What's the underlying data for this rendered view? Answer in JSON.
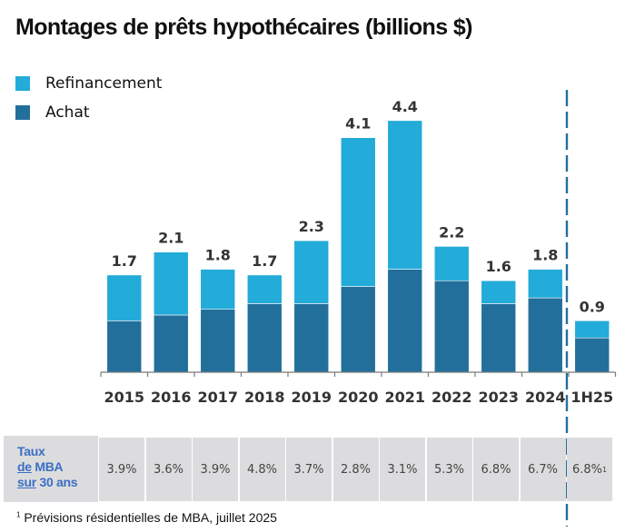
{
  "chart_data": {
    "type": "bar",
    "stacked": true,
    "title": "Montages de prêts hypothécaires (billions $)",
    "xlabel": "",
    "ylabel": "",
    "ylim": [
      0,
      4.5
    ],
    "grid": false,
    "legend_position": "top-left",
    "categories": [
      "2015",
      "2016",
      "2017",
      "2018",
      "2019",
      "2020",
      "2021",
      "2022",
      "2023",
      "2024",
      "1H25"
    ],
    "series": [
      {
        "name": "Achat",
        "color": "#236f9b",
        "values": [
          0.9,
          1.0,
          1.1,
          1.2,
          1.2,
          1.5,
          1.8,
          1.6,
          1.2,
          1.3,
          0.6
        ]
      },
      {
        "name": "Refinancement",
        "color": "#23abd9",
        "values": [
          0.8,
          1.1,
          0.7,
          0.5,
          1.1,
          2.6,
          2.6,
          0.6,
          0.4,
          0.5,
          0.3
        ]
      }
    ],
    "totals": [
      1.7,
      2.1,
      1.8,
      1.7,
      2.3,
      4.1,
      4.4,
      2.2,
      1.6,
      1.8,
      0.9
    ],
    "total_labels": [
      "1.7",
      "2.1",
      "1.8",
      "1.7",
      "2.3",
      "4.1",
      "4.4",
      "2.2",
      "1.6",
      "1.8",
      "0.9"
    ],
    "forecast_divider_after": "2024",
    "divider_color": "#236f9b"
  },
  "legend": [
    {
      "label": "Refinancement",
      "color": "#23abd9"
    },
    {
      "label": "Achat",
      "color": "#236f9b"
    }
  ],
  "rates": {
    "header_line1": "Taux",
    "header_line2_a": "de",
    "header_line2_b": " MBA",
    "header_line3_a": "sur",
    "header_line3_b": " 30 ans",
    "values": [
      "3.9%",
      "3.6%",
      "3.9%",
      "4.8%",
      "3.7%",
      "2.8%",
      "3.1%",
      "5.3%",
      "6.8%",
      "6.7%",
      "6.8%"
    ],
    "last_superscript": "1"
  },
  "footnote": {
    "marker": "1",
    "text": " Prévisions résidentielles de MBA, juillet 2025"
  }
}
